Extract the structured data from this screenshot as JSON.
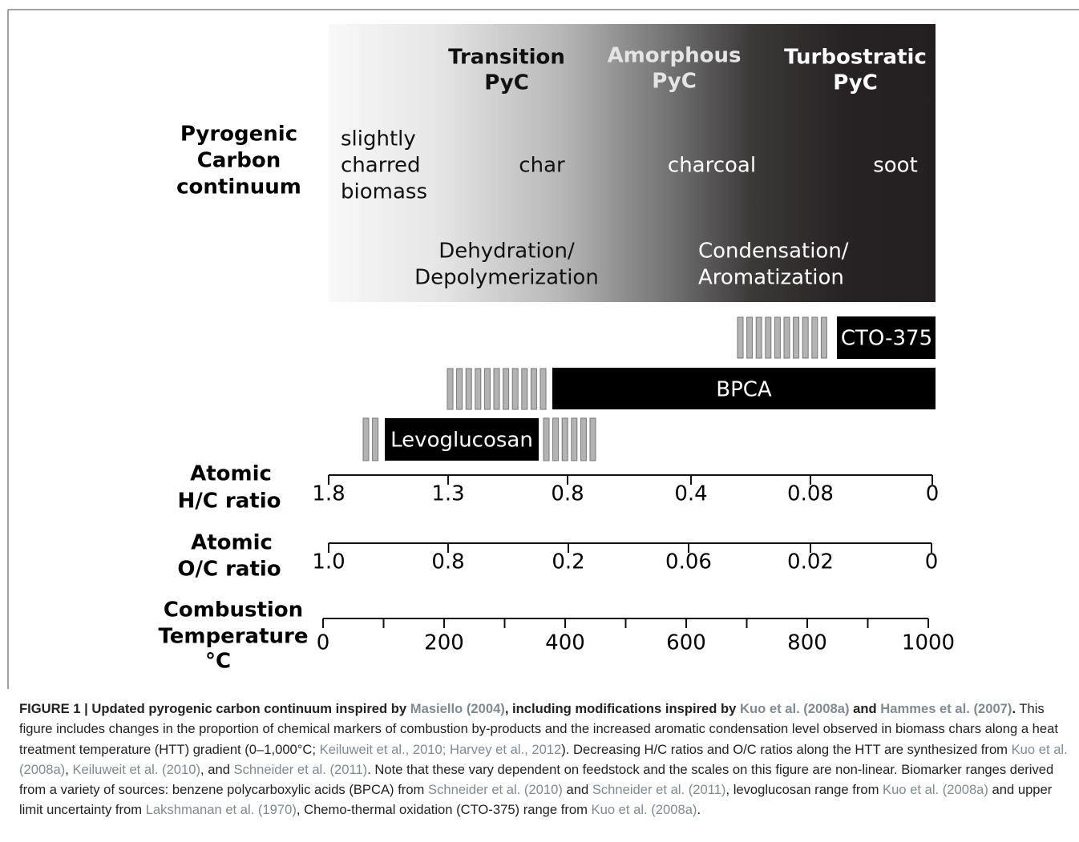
{
  "figure": {
    "row_label": [
      "Pyrogenic",
      "Carbon",
      "continuum"
    ],
    "stages": [
      [
        "Transition",
        "PyC"
      ],
      [
        "Amorphous",
        "PyC"
      ],
      [
        "Turbostratic",
        "PyC"
      ]
    ],
    "materials": [
      [
        "slightly",
        "charred",
        "biomass"
      ],
      [
        "char"
      ],
      [
        "charcoal"
      ],
      [
        "soot"
      ]
    ],
    "processes": [
      [
        "Dehydration/",
        "Depolymerization"
      ],
      [
        "Condensation/",
        "Aromatization"
      ]
    ],
    "markers": [
      "CTO-375",
      "BPCA",
      "Levoglucosan"
    ],
    "axes": [
      {
        "label": [
          "Atomic",
          "H/C ratio"
        ],
        "ticks": [
          "1.8",
          "1.3",
          "0.8",
          "0.4",
          "0.08",
          "0"
        ]
      },
      {
        "label": [
          "Atomic",
          "O/C ratio"
        ],
        "ticks": [
          "1.0",
          "0.8",
          "0.2",
          "0.06",
          "0.02",
          "0"
        ]
      },
      {
        "label": [
          "Combustion",
          "Temperature",
          "°C"
        ],
        "ticks": [
          "0",
          "200",
          "400",
          "600",
          "800",
          "1000"
        ]
      }
    ]
  },
  "caption": {
    "segments": [
      "FIGURE 1 | Updated pyrogenic carbon continuum inspired by ",
      "Masiello (2004)",
      ", including modifications inspired by ",
      "Kuo et al. (2008a)",
      " and ",
      "Hammes et al. (2007)",
      ".",
      " This figure includes changes in the proportion of chemical markers of combustion by-products and the increased aromatic condensation level observed in biomass chars along a heat treatment temperature (HTT) gradient (0–1,000°C; ",
      "Keiluweit et al., 2010; Harvey et al., 2012",
      "). Decreasing H/C ratios and O/C ratios along the HTT are synthesized from ",
      "Kuo et al. (2008a)",
      ", ",
      "Keiluweit et al. (2010)",
      ", and ",
      "Schneider et al. (2011)",
      ". Note that these vary dependent on feedstock and the scales on this figure are non-linear. Biomarker ranges derived from a variety of sources: benzene polycarboxylic acids (BPCA) from ",
      "Schneider et al. (2010)",
      " and ",
      "Schneider et al. (2011)",
      ", levoglucosan range from ",
      "Kuo et al. (2008a)",
      " and upper limit uncertainty from ",
      "Lakshmanan et al. (1970)",
      ", Chemo-thermal oxidation (CTO-375) range from ",
      "Kuo et al. (2008a)",
      "."
    ]
  }
}
